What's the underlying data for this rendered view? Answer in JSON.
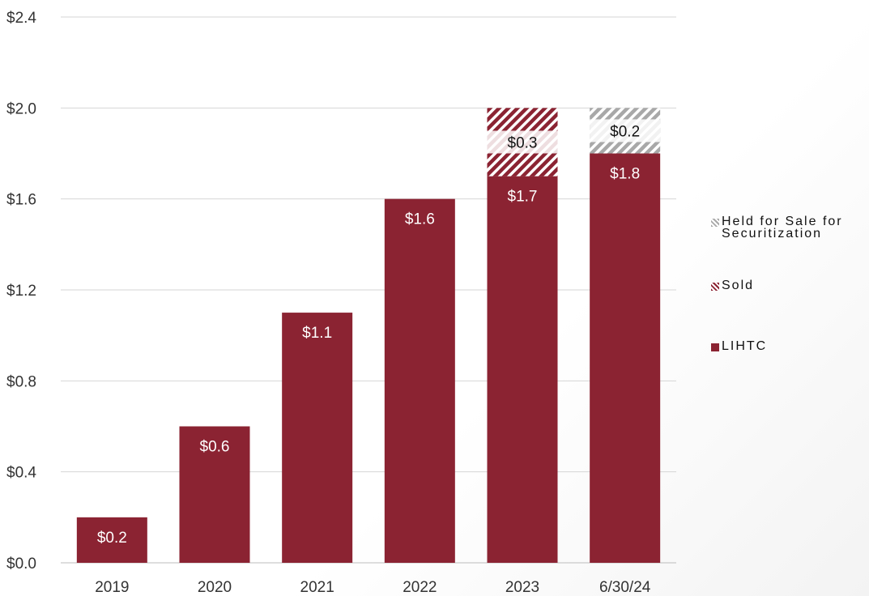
{
  "chart_data": {
    "type": "bar",
    "stacked": true,
    "categories": [
      "2019",
      "2020",
      "2021",
      "2022",
      "2023",
      "6/30/24"
    ],
    "series": [
      {
        "name": "LIHTC",
        "values": [
          0.2,
          0.6,
          1.1,
          1.6,
          1.7,
          1.8
        ],
        "labels": [
          "$0.2",
          "$0.6",
          "$1.1",
          "$1.6",
          "$1.7",
          "$1.8"
        ],
        "color": "#8b2332"
      },
      {
        "name": "Sold",
        "values": [
          0,
          0,
          0,
          0,
          0.3,
          0
        ],
        "labels": [
          "",
          "",
          "",
          "",
          "$0.3",
          ""
        ],
        "color": "#8b2332",
        "pattern": "hatched"
      },
      {
        "name": "Held for Sale for Securitization",
        "values": [
          0,
          0,
          0,
          0,
          0,
          0.2
        ],
        "labels": [
          "",
          "",
          "",
          "",
          "",
          "$0.2"
        ],
        "color": "#a8a8a8",
        "pattern": "hatched"
      }
    ],
    "yticks": [
      "$0.0",
      "$0.4",
      "$0.8",
      "$1.2",
      "$1.6",
      "$2.0",
      "$2.4"
    ],
    "ylim": [
      0,
      2.4
    ],
    "grid": true,
    "legend_position": "right",
    "legend_order": [
      "Held for Sale for Securitization",
      "Sold",
      "LIHTC"
    ],
    "title": "",
    "xlabel": "",
    "ylabel": ""
  }
}
